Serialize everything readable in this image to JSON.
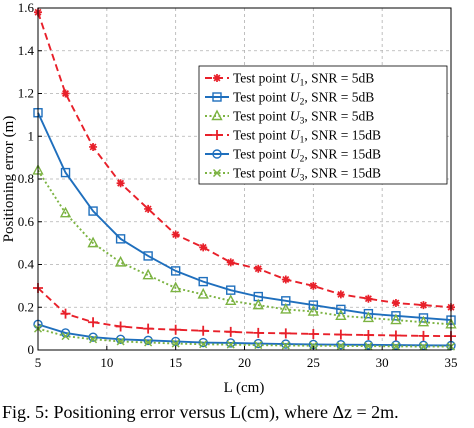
{
  "chart_data": {
    "type": "line",
    "xlabel": "L (cm)",
    "ylabel": "Positioning error (m)",
    "xlim": [
      5,
      35
    ],
    "ylim": [
      0,
      1.6
    ],
    "xticks": [
      5,
      10,
      15,
      20,
      25,
      30,
      35
    ],
    "yticks": [
      0,
      0.2,
      0.4,
      0.6,
      0.8,
      1,
      1.2,
      1.4,
      1.6
    ],
    "xtick_labels": [
      "5",
      "10",
      "15",
      "20",
      "25",
      "30",
      "35"
    ],
    "ytick_labels": [
      "0",
      "0.2",
      "0.4",
      "0.6",
      "0.8",
      "1",
      "1.2",
      "1.4",
      "1.6"
    ],
    "grid": true,
    "legend_position": "top-right",
    "x": [
      5,
      7,
      9,
      11,
      13,
      15,
      17,
      19,
      21,
      23,
      25,
      27,
      29,
      31,
      33,
      35
    ],
    "series": [
      {
        "name": "Test point U1, SNR = 5dB",
        "color": "#e8202a",
        "dash": "dashed",
        "marker": "asterisk",
        "values": [
          1.58,
          1.2,
          0.95,
          0.78,
          0.66,
          0.54,
          0.48,
          0.41,
          0.38,
          0.33,
          0.3,
          0.26,
          0.24,
          0.22,
          0.21,
          0.2
        ]
      },
      {
        "name": "Test point U2, SNR = 5dB",
        "color": "#1f6fbd",
        "dash": "solid",
        "marker": "square",
        "values": [
          1.11,
          0.83,
          0.65,
          0.52,
          0.44,
          0.37,
          0.32,
          0.28,
          0.25,
          0.23,
          0.21,
          0.19,
          0.17,
          0.16,
          0.15,
          0.14
        ]
      },
      {
        "name": "Test point U3, SNR = 5dB",
        "color": "#7cb342",
        "dash": "dotted",
        "marker": "triangle",
        "values": [
          0.84,
          0.64,
          0.5,
          0.41,
          0.35,
          0.29,
          0.26,
          0.23,
          0.21,
          0.19,
          0.18,
          0.16,
          0.15,
          0.14,
          0.13,
          0.12
        ]
      },
      {
        "name": "Test point U1, SNR = 15dB",
        "color": "#e8202a",
        "dash": "dashed",
        "marker": "plus",
        "values": [
          0.29,
          0.17,
          0.13,
          0.11,
          0.1,
          0.095,
          0.09,
          0.085,
          0.08,
          0.078,
          0.075,
          0.072,
          0.07,
          0.068,
          0.066,
          0.065
        ]
      },
      {
        "name": "Test point U2, SNR = 15dB",
        "color": "#1f6fbd",
        "dash": "solid",
        "marker": "circle",
        "values": [
          0.12,
          0.08,
          0.06,
          0.05,
          0.045,
          0.04,
          0.035,
          0.033,
          0.03,
          0.028,
          0.026,
          0.025,
          0.024,
          0.023,
          0.022,
          0.021
        ]
      },
      {
        "name": "Test point U3, SNR = 15dB",
        "color": "#7cb342",
        "dash": "dotted",
        "marker": "xmark",
        "values": [
          0.1,
          0.065,
          0.05,
          0.04,
          0.035,
          0.03,
          0.027,
          0.025,
          0.023,
          0.021,
          0.02,
          0.019,
          0.018,
          0.017,
          0.016,
          0.016
        ]
      }
    ],
    "legend": [
      {
        "prefix": "Test point ",
        "var": "U",
        "sub": "1",
        "suffix": ", SNR = 5dB"
      },
      {
        "prefix": "Test point ",
        "var": "U",
        "sub": "2",
        "suffix": ", SNR = 5dB"
      },
      {
        "prefix": "Test point ",
        "var": "U",
        "sub": "3",
        "suffix": ", SNR = 5dB"
      },
      {
        "prefix": "Test point ",
        "var": "U",
        "sub": "1",
        "suffix": ", SNR = 15dB"
      },
      {
        "prefix": "Test point ",
        "var": "U",
        "sub": "2",
        "suffix": ", SNR = 15dB"
      },
      {
        "prefix": "Test point ",
        "var": "U",
        "sub": "3",
        "suffix": ", SNR = 15dB"
      }
    ]
  },
  "caption": "Fig. 5: Positioning error versus L(cm), where Δz = 2m."
}
